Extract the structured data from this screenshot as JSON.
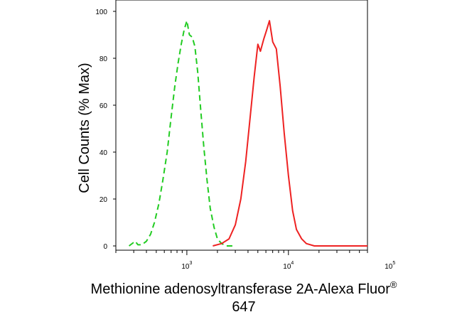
{
  "chart_data": {
    "type": "line",
    "title": "",
    "xlabel_line1": "Methionine adenosyltransferase 2A-Alexa Fluor",
    "xlabel_sup": "®",
    "xlabel_line2": "647",
    "ylabel": "Cell Counts (% Max)",
    "x_scale": "log",
    "xlim": [
      200,
      60000
    ],
    "ylim": [
      0,
      100
    ],
    "x_ticks": [
      {
        "value": 1000,
        "base": "10",
        "exp": "3"
      },
      {
        "value": 10000,
        "base": "10",
        "exp": "4"
      },
      {
        "value": 100000,
        "base": "10",
        "exp": "5"
      }
    ],
    "y_ticks": [
      0,
      20,
      40,
      60,
      80,
      100
    ],
    "series": [
      {
        "color": "#22cc22",
        "style": "dashed",
        "points": [
          [
            270,
            0
          ],
          [
            310,
            2
          ],
          [
            330,
            0.5
          ],
          [
            360,
            0.5
          ],
          [
            400,
            2
          ],
          [
            440,
            5
          ],
          [
            480,
            10
          ],
          [
            530,
            18
          ],
          [
            580,
            28
          ],
          [
            640,
            40
          ],
          [
            700,
            55
          ],
          [
            760,
            68
          ],
          [
            820,
            78
          ],
          [
            880,
            86
          ],
          [
            940,
            92
          ],
          [
            1000,
            96
          ],
          [
            1060,
            90
          ],
          [
            1130,
            89
          ],
          [
            1200,
            85
          ],
          [
            1280,
            74
          ],
          [
            1370,
            58
          ],
          [
            1470,
            42
          ],
          [
            1580,
            28
          ],
          [
            1700,
            16
          ],
          [
            1850,
            8
          ],
          [
            2000,
            3
          ],
          [
            2200,
            1
          ],
          [
            2450,
            0
          ],
          [
            3000,
            0
          ]
        ]
      },
      {
        "color": "#ee2222",
        "style": "solid",
        "points": [
          [
            1800,
            0
          ],
          [
            2200,
            1
          ],
          [
            2600,
            3
          ],
          [
            3000,
            9
          ],
          [
            3400,
            20
          ],
          [
            3800,
            36
          ],
          [
            4200,
            55
          ],
          [
            4600,
            72
          ],
          [
            5000,
            86
          ],
          [
            5300,
            83
          ],
          [
            5700,
            88
          ],
          [
            6100,
            92
          ],
          [
            6500,
            96
          ],
          [
            7000,
            87
          ],
          [
            7600,
            84
          ],
          [
            8300,
            68
          ],
          [
            9100,
            48
          ],
          [
            10000,
            30
          ],
          [
            11000,
            15
          ],
          [
            12000,
            7
          ],
          [
            13500,
            3
          ],
          [
            15000,
            1
          ],
          [
            18000,
            0
          ],
          [
            60000,
            0
          ]
        ]
      }
    ]
  }
}
